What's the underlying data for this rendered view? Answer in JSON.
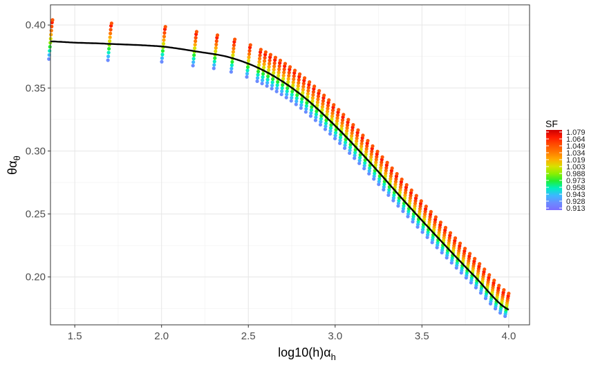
{
  "chart_data": {
    "type": "scatter",
    "title": "",
    "x_axis": {
      "label_main": "log10(h)α",
      "label_sub": "h",
      "lim": [
        1.36,
        4.12
      ],
      "ticks": [
        1.5,
        2.0,
        2.5,
        3.0,
        3.5,
        4.0
      ],
      "tick_labels": [
        "1.5",
        "2.0",
        "2.5",
        "3.0",
        "3.5",
        "4.0"
      ]
    },
    "y_axis": {
      "label_main": "θα",
      "label_sub": "θ",
      "lim": [
        0.162,
        0.416
      ],
      "ticks": [
        0.2,
        0.25,
        0.3,
        0.35,
        0.4
      ],
      "tick_labels": [
        "0.20",
        "0.25",
        "0.30",
        "0.35",
        "0.40"
      ]
    },
    "grid": true,
    "legend": {
      "title": "SF",
      "position": "right",
      "values": [
        "1.079",
        "1.064",
        "1.049",
        "1.034",
        "1.019",
        "1.003",
        "0.988",
        "0.973",
        "0.958",
        "0.943",
        "0.928",
        "0.913"
      ],
      "colors": [
        "#cc0000",
        "#ff1a00",
        "#ff4d00",
        "#ff7700",
        "#ffaa00",
        "#d8e000",
        "#8cef00",
        "#22ee33",
        "#00eec0",
        "#3cb8ff",
        "#6a8cff",
        "#7b6cff"
      ]
    },
    "fitted_curve": {
      "color": "#000000",
      "x": [
        1.36,
        1.5,
        1.7,
        2.0,
        2.2,
        2.4,
        2.6,
        2.8,
        3.0,
        3.2,
        3.4,
        3.6,
        3.8,
        4.0
      ],
      "y": [
        0.387,
        0.386,
        0.385,
        0.383,
        0.379,
        0.374,
        0.363,
        0.345,
        0.32,
        0.291,
        0.26,
        0.23,
        0.201,
        0.174
      ]
    },
    "point_band": {
      "x_min": 1.36,
      "x_max": 4.0,
      "top_offset_near_min_x": 0.015,
      "top_offset_at_max_x": 0.01,
      "bottom_offset_near_min_x": -0.014,
      "bottom_offset_at_max_x": -0.006,
      "top_color": "#ff5500",
      "bottom_color": "#00dcc8"
    }
  }
}
